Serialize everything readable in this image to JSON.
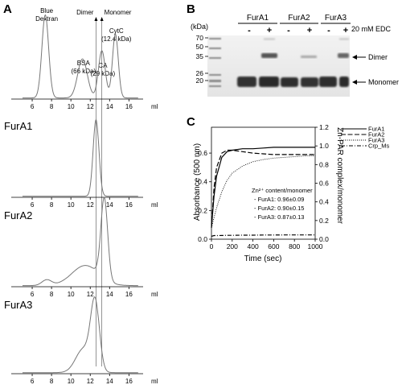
{
  "panels": {
    "A": {
      "label": "A",
      "x_unit": "ml",
      "x_ticks": [
        "6",
        "8",
        "10",
        "12",
        "14",
        "16"
      ],
      "reference_lines": [
        {
          "label": "Dimer",
          "x_ml": 12.6
        },
        {
          "label": "Monomer",
          "x_ml": 13.2
        }
      ],
      "standards_annotations": [
        {
          "text": "Blue",
          "x_ml": 7.5
        },
        {
          "text": "Dextran",
          "x_ml": 7.5
        },
        {
          "text": "BSA",
          "x_ml": 11.3
        },
        {
          "text": "(66 kDa)",
          "x_ml": 11.3
        },
        {
          "text": "CA",
          "x_ml": 13.3
        },
        {
          "text": "(29 kDa)",
          "x_ml": 13.3
        },
        {
          "text": "CytC",
          "x_ml": 14.7
        },
        {
          "text": "(12.4 kDa)",
          "x_ml": 14.7
        }
      ],
      "traces": [
        {
          "name": "",
          "peaks": [
            {
              "x": 7.35,
              "h": 1.0,
              "w": 0.35
            },
            {
              "x": 11.2,
              "h": 0.47,
              "w": 0.5
            },
            {
              "x": 13.2,
              "h": 0.57,
              "w": 0.35
            },
            {
              "x": 14.6,
              "h": 0.77,
              "w": 0.3
            }
          ]
        },
        {
          "name": "FurA1",
          "peaks": [
            {
              "x": 12.6,
              "h": 1.0,
              "w": 0.3
            }
          ]
        },
        {
          "name": "FurA2",
          "peaks": [
            {
              "x": 7.5,
              "h": 0.07,
              "w": 0.5
            },
            {
              "x": 11.5,
              "h": 0.25,
              "w": 1.4
            },
            {
              "x": 13.45,
              "h": 1.0,
              "w": 0.35
            }
          ]
        },
        {
          "name": "FurA3",
          "peaks": [
            {
              "x": 12.5,
              "h": 1.0,
              "w": 0.45
            },
            {
              "x": 11.3,
              "h": 0.35,
              "w": 0.8
            }
          ]
        }
      ]
    },
    "B": {
      "label": "B",
      "kda_label": "(kDa)",
      "markers": [
        "70",
        "50",
        "35",
        "26",
        "20"
      ],
      "groups": [
        "FurA1",
        "FurA2",
        "FurA3"
      ],
      "lane_signs": [
        "-",
        "+",
        "-",
        "+",
        "-",
        "+"
      ],
      "edc_label": "20 mM EDC",
      "band_labels": [
        "Dimer",
        "Monomer"
      ]
    },
    "C": {
      "label": "C",
      "ylabel_left": "Absorbance (500 nm)",
      "ylabel_right": "Zn-PAR complex/monomer",
      "xlabel": "Time (sec)",
      "x_ticks": [
        "0",
        "200",
        "400",
        "600",
        "800",
        "1000"
      ],
      "y_left_ticks": [
        "0.0",
        "0.2",
        "0.4",
        "0.6"
      ],
      "y_right_ticks": [
        "0.0",
        "0.2",
        "0.4",
        "0.6",
        "0.8",
        "1.0",
        "1.2"
      ],
      "legend": [
        "FurA1",
        "FurA2",
        "FurA3",
        "Crp_Ms"
      ],
      "zn_title": "Zn²⁺ content/monomer",
      "zn_rows": [
        "- FurA1: 0.96±0.09",
        "- FurA2: 0.90±0.15",
        "- FurA3: 0.87±0.13"
      ]
    }
  },
  "chart_data": [
    {
      "type": "line",
      "title": "",
      "xlabel": "Time (sec)",
      "ylabel": "Absorbance (500 nm)",
      "ylabel_right": "Zn-PAR complex/monomer",
      "xlim": [
        0,
        1000
      ],
      "ylim": [
        0,
        0.78
      ],
      "ylim_right": [
        0,
        1.2
      ],
      "x": [
        0,
        25,
        50,
        100,
        150,
        200,
        300,
        400,
        500,
        600,
        700,
        800,
        900,
        1000
      ],
      "series": [
        {
          "name": "FurA1",
          "style": "solid",
          "values": [
            0.08,
            0.3,
            0.44,
            0.57,
            0.61,
            0.62,
            0.63,
            0.63,
            0.635,
            0.64,
            0.64,
            0.64,
            0.64,
            0.64
          ]
        },
        {
          "name": "FurA2",
          "style": "dashed",
          "values": [
            0.08,
            0.36,
            0.5,
            0.6,
            0.62,
            0.62,
            0.61,
            0.6,
            0.595,
            0.59,
            0.59,
            0.59,
            0.59,
            0.59
          ]
        },
        {
          "name": "FurA3",
          "style": "dotted",
          "values": [
            0.08,
            0.15,
            0.22,
            0.33,
            0.41,
            0.46,
            0.51,
            0.54,
            0.555,
            0.565,
            0.57,
            0.575,
            0.58,
            0.58
          ]
        },
        {
          "name": "Crp_Ms",
          "style": "dashdot",
          "values": [
            0.02,
            0.025,
            0.025,
            0.026,
            0.027,
            0.027,
            0.028,
            0.028,
            0.029,
            0.029,
            0.03,
            0.03,
            0.03,
            0.03
          ]
        }
      ]
    }
  ]
}
